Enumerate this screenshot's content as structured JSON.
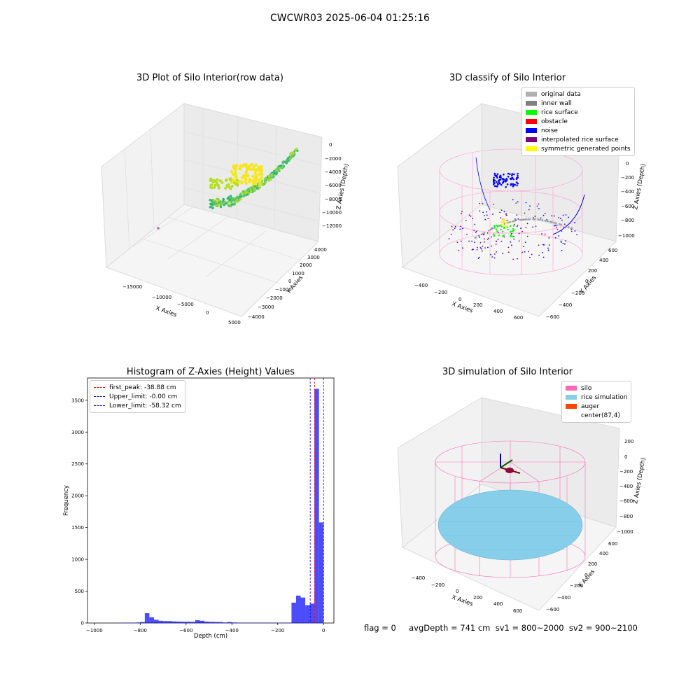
{
  "suptitle": "CWCWR03 2025-06-04 01:25:16",
  "panel1": {
    "title": "3D Plot of Silo Interior(row data)",
    "xlabel": "X Axies",
    "ylabel": "Y Axies",
    "zlabel": "Z Axies (Depth)",
    "xticks": [
      "−15000",
      "−10000",
      "−5000",
      "0",
      "5000"
    ],
    "yticks": [
      "−4000",
      "−3000",
      "−2000",
      "−1000",
      "0",
      "1000",
      "2000",
      "3000",
      "4000"
    ],
    "zticks": [
      "0",
      "−2000",
      "−4000",
      "−6000",
      "−8000",
      "−10000",
      "−12000"
    ]
  },
  "panel2": {
    "title": "3D classify of Silo Interior",
    "xlabel": "X Axies",
    "ylabel": "Y Axies",
    "zlabel": "Z Axies (Depth)",
    "xticks": [
      "−400",
      "−200",
      "0",
      "200",
      "400",
      "600"
    ],
    "yticks": [
      "−600",
      "−400",
      "−200",
      "0",
      "200",
      "400",
      "600"
    ],
    "zticks": [
      "200",
      "0",
      "−200",
      "−400",
      "−600",
      "−800",
      "−1000"
    ],
    "legend": [
      {
        "label": "original data",
        "color": "#b0b0b0"
      },
      {
        "label": "inner wall",
        "color": "#808080"
      },
      {
        "label": "rice surface",
        "color": "#00ff00"
      },
      {
        "label": "obstacle",
        "color": "#ff0000"
      },
      {
        "label": "noise",
        "color": "#0000ff"
      },
      {
        "label": "interpolated rice surface",
        "color": "#800080"
      },
      {
        "label": "symmetric generated points",
        "color": "#ffff00"
      }
    ]
  },
  "panel3": {
    "title": "Histogram of Z-Axies (Height) Values",
    "legend": [
      {
        "label": "first_peak: -38.88 cm",
        "color": "#ff0000"
      },
      {
        "label": "Upper_limit: -0.00 cm",
        "color": "#0000ff"
      },
      {
        "label": "Lower_limit: -58.32 cm",
        "color": "#0000ff"
      }
    ]
  },
  "panel4": {
    "title": "3D simulation of Silo Interior",
    "xlabel": "X Axies",
    "ylabel": "Y Axies",
    "zlabel": "Z Axies (Depth)",
    "xticks": [
      "−400",
      "−200",
      "0",
      "200",
      "400",
      "600"
    ],
    "yticks": [
      "−600",
      "−400",
      "−200",
      "0",
      "200",
      "400",
      "600"
    ],
    "zticks": [
      "200",
      "0",
      "−200",
      "−400",
      "−600",
      "−800",
      "−1000"
    ],
    "legend": [
      {
        "label": "silo",
        "color": "#ff69b4"
      },
      {
        "label": "rice simulation",
        "color": "#87ceeb"
      },
      {
        "label": "auger",
        "color": "#ff4500"
      },
      {
        "label": "center(87,4)",
        "color": ""
      }
    ]
  },
  "footer": "flag = 0     avgDepth = 741 cm  sv1 = 800~2000  sv2 = 900~2100",
  "chart_data": {
    "type": "bar",
    "title": "Histogram of Z-Axies (Height) Values",
    "xlabel": "Depth (cm)",
    "ylabel": "Frequency",
    "xlim": [
      -1030,
      45
    ],
    "ylim": [
      0,
      3850
    ],
    "xticks": [
      -1000,
      -800,
      -600,
      -400,
      -200,
      0
    ],
    "yticks": [
      0,
      500,
      1000,
      1500,
      2000,
      2500,
      3000,
      3500
    ],
    "bin_width": 20,
    "bins": [
      {
        "x0": -880,
        "y": 5
      },
      {
        "x0": -860,
        "y": 5
      },
      {
        "x0": -840,
        "y": 5
      },
      {
        "x0": -820,
        "y": 8
      },
      {
        "x0": -800,
        "y": 15
      },
      {
        "x0": -780,
        "y": 155
      },
      {
        "x0": -760,
        "y": 90
      },
      {
        "x0": -740,
        "y": 50
      },
      {
        "x0": -720,
        "y": 35
      },
      {
        "x0": -700,
        "y": 30
      },
      {
        "x0": -680,
        "y": 30
      },
      {
        "x0": -660,
        "y": 25
      },
      {
        "x0": -640,
        "y": 22
      },
      {
        "x0": -620,
        "y": 20
      },
      {
        "x0": -600,
        "y": 20
      },
      {
        "x0": -580,
        "y": 18
      },
      {
        "x0": -560,
        "y": 45
      },
      {
        "x0": -540,
        "y": 35
      },
      {
        "x0": -520,
        "y": 22
      },
      {
        "x0": -500,
        "y": 18
      },
      {
        "x0": -480,
        "y": 16
      },
      {
        "x0": -460,
        "y": 15
      },
      {
        "x0": -440,
        "y": 8
      },
      {
        "x0": -420,
        "y": 15
      },
      {
        "x0": -400,
        "y": 8
      },
      {
        "x0": -380,
        "y": 6
      },
      {
        "x0": -360,
        "y": 5
      },
      {
        "x0": -340,
        "y": 5
      },
      {
        "x0": -320,
        "y": 5
      },
      {
        "x0": -300,
        "y": 5
      },
      {
        "x0": -280,
        "y": 5
      },
      {
        "x0": -260,
        "y": 5
      },
      {
        "x0": -240,
        "y": 5
      },
      {
        "x0": -220,
        "y": 5
      },
      {
        "x0": -200,
        "y": 5
      },
      {
        "x0": -180,
        "y": 5
      },
      {
        "x0": -160,
        "y": 5
      },
      {
        "x0": -140,
        "y": 320
      },
      {
        "x0": -120,
        "y": 430
      },
      {
        "x0": -100,
        "y": 400
      },
      {
        "x0": -80,
        "y": 280
      },
      {
        "x0": -60,
        "y": 305
      },
      {
        "x0": -40,
        "y": 3680
      },
      {
        "x0": -20,
        "y": 1580
      }
    ],
    "vlines": [
      {
        "name": "first_peak",
        "x": -38.88,
        "color": "#ff0000"
      },
      {
        "name": "Upper_limit",
        "x": 0.0,
        "color": "#0000ff"
      },
      {
        "name": "Lower_limit",
        "x": -58.32,
        "color": "#0000ff"
      }
    ]
  }
}
